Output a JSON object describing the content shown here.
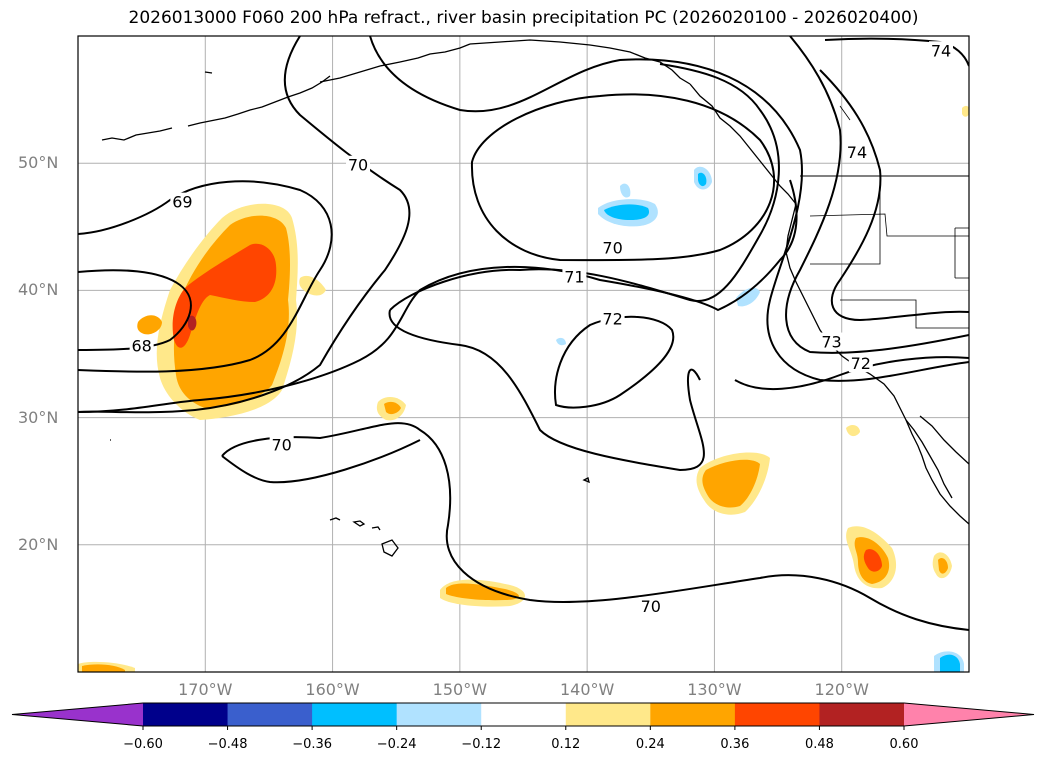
{
  "title": "2026013000 F060 200 hPa refract., river basin precipitation PC (2026020100 - 2026020400)",
  "map": {
    "projection": "PlateCarree",
    "extent": {
      "lon_min": -180,
      "lon_max": -110,
      "lat_min": 10,
      "lat_max": 60
    },
    "lat_labels": [
      "50°N",
      "40°N",
      "30°N",
      "20°N"
    ],
    "lat_values": [
      50,
      40,
      30,
      20
    ],
    "lon_labels": [
      "170°W",
      "160°W",
      "150°W",
      "140°W",
      "130°W",
      "120°W"
    ],
    "lon_values": [
      -170,
      -160,
      -150,
      -140,
      -130,
      -120
    ],
    "contour_labels": [
      {
        "text": "70",
        "lon": -158,
        "lat": 49.8
      },
      {
        "text": "69",
        "lon": -171.8,
        "lat": 46.9
      },
      {
        "text": "70",
        "lon": -138,
        "lat": 43.3
      },
      {
        "text": "71",
        "lon": -141,
        "lat": 41.0
      },
      {
        "text": "72",
        "lon": -138,
        "lat": 37.7
      },
      {
        "text": "68",
        "lon": -175,
        "lat": 35.6
      },
      {
        "text": "73",
        "lon": -120.8,
        "lat": 35.9
      },
      {
        "text": "72",
        "lon": -118.5,
        "lat": 34.2
      },
      {
        "text": "74",
        "lon": -118.8,
        "lat": 50.8
      },
      {
        "text": "70",
        "lon": -164,
        "lat": 27.8
      },
      {
        "text": "70",
        "lon": -135,
        "lat": 15.1
      },
      {
        "text": "74",
        "lon": -112.2,
        "lat": 58.8
      }
    ]
  },
  "colorbar": {
    "levels": [
      -0.6,
      -0.48,
      -0.36,
      -0.24,
      -0.12,
      0.12,
      0.24,
      0.36,
      0.48,
      0.6
    ],
    "tick_labels": [
      "−0.60",
      "−0.48",
      "−0.36",
      "−0.24",
      "−0.12",
      "0.12",
      "0.24",
      "0.36",
      "0.48",
      "0.60"
    ],
    "colors": [
      "#9932cc",
      "#00008b",
      "#3a5fcd",
      "#00bfff",
      "#b0e2ff",
      "#ffffff",
      "#ffe88a",
      "#ffa500",
      "#ff4500",
      "#b22222",
      "#ff82ab"
    ],
    "extend": "both"
  }
}
